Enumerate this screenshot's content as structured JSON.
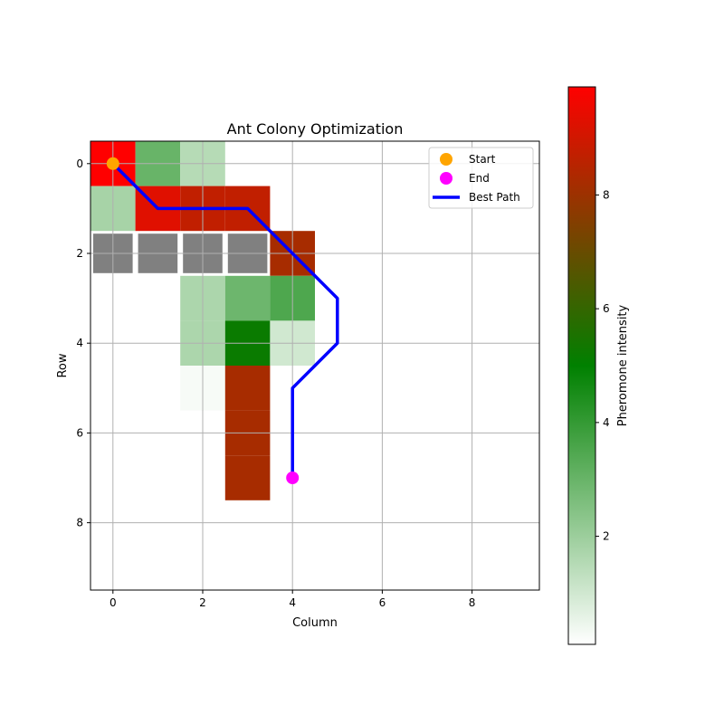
{
  "chart_data": {
    "type": "heatmap",
    "title": "Ant Colony Optimization",
    "xlabel": "Column",
    "ylabel": "Row",
    "xlim": [
      -0.5,
      9.5
    ],
    "ylim": [
      9.5,
      -0.5
    ],
    "xticks": [
      0,
      2,
      4,
      6,
      8
    ],
    "yticks": [
      0,
      2,
      4,
      6,
      8
    ],
    "grid": true,
    "colorbar": {
      "label": "Pheromone intensity",
      "min": 0.1,
      "max": 9.9,
      "ticks": [
        2,
        4,
        6,
        8
      ],
      "colors": [
        "#ffffff",
        "#008000",
        "#ff0000"
      ]
    },
    "cells": [
      {
        "row": 0,
        "col": 0,
        "value": 9.9
      },
      {
        "row": 0,
        "col": 1,
        "value": 3.0
      },
      {
        "row": 0,
        "col": 2,
        "value": 1.5
      },
      {
        "row": 1,
        "col": 0,
        "value": 1.8
      },
      {
        "row": 1,
        "col": 1,
        "value": 9.3
      },
      {
        "row": 1,
        "col": 2,
        "value": 8.7
      },
      {
        "row": 1,
        "col": 3,
        "value": 8.7
      },
      {
        "row": 2,
        "col": 4,
        "value": 8.2
      },
      {
        "row": 3,
        "col": 2,
        "value": 1.7
      },
      {
        "row": 3,
        "col": 3,
        "value": 2.9
      },
      {
        "row": 3,
        "col": 4,
        "value": 3.5
      },
      {
        "row": 4,
        "col": 2,
        "value": 1.7
      },
      {
        "row": 4,
        "col": 3,
        "value": 5.2
      },
      {
        "row": 4,
        "col": 4,
        "value": 1.0
      },
      {
        "row": 5,
        "col": 2,
        "value": 0.25
      },
      {
        "row": 5,
        "col": 3,
        "value": 8.2
      },
      {
        "row": 6,
        "col": 3,
        "value": 8.2
      },
      {
        "row": 7,
        "col": 3,
        "value": 8.2
      }
    ],
    "obstacles": [
      {
        "row": 2,
        "col": 0
      },
      {
        "row": 2,
        "col": 1
      },
      {
        "row": 2,
        "col": 2
      },
      {
        "row": 2,
        "col": 3
      }
    ],
    "obstacle_color": "#808080",
    "series": [
      {
        "name": "Start",
        "kind": "marker",
        "x": [
          0
        ],
        "y": [
          0
        ],
        "color": "#ffa500"
      },
      {
        "name": "End",
        "kind": "marker",
        "x": [
          4
        ],
        "y": [
          7
        ],
        "color": "#ff00ff"
      },
      {
        "name": "Best Path",
        "kind": "line",
        "x": [
          0,
          1,
          2,
          3,
          4,
          5,
          5,
          4,
          4,
          4,
          4
        ],
        "y": [
          0,
          1,
          1,
          1,
          2,
          3,
          4,
          5,
          6,
          7,
          7
        ],
        "color": "#0000ff"
      }
    ],
    "legend_position": "top-right"
  }
}
